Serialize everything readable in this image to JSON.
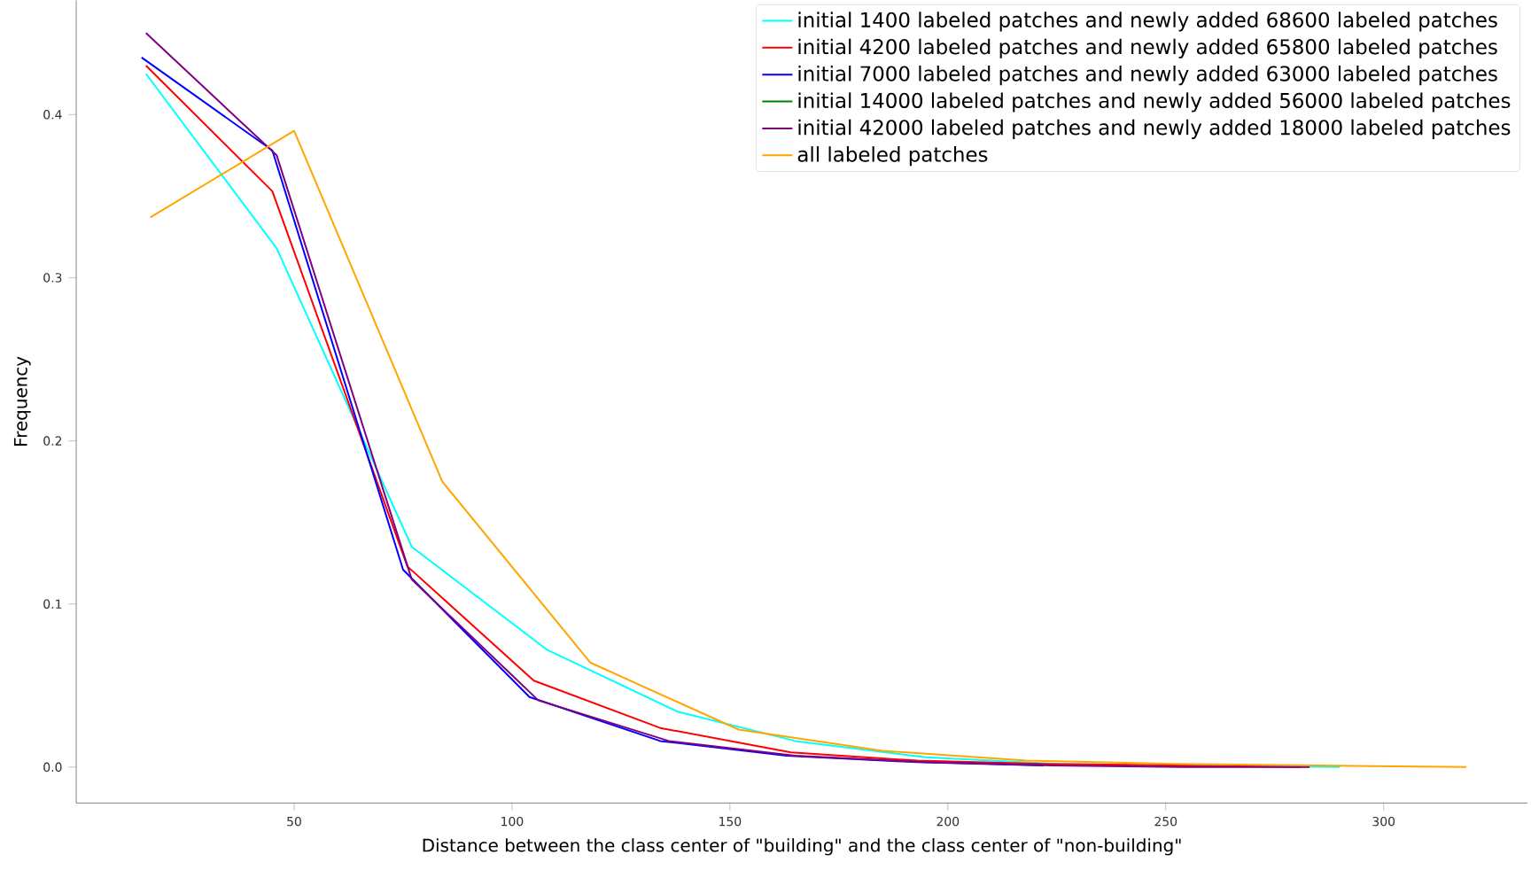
{
  "chart_data": {
    "type": "line",
    "xlabel": "Distance between the class center of \"building\" and the class center of \"non-building\"",
    "ylabel": "Frequency",
    "xlim": [
      0,
      333
    ],
    "ylim": [
      -0.022,
      0.47
    ],
    "xticks": [
      50,
      100,
      150,
      200,
      250,
      300
    ],
    "yticks": [
      {
        "value": 0,
        "label": "0.0"
      },
      {
        "value": 0.1,
        "label": "0.1"
      },
      {
        "value": 0.2,
        "label": "0.2"
      },
      {
        "value": 0.3,
        "label": "0.3"
      },
      {
        "value": 0.4,
        "label": "0.4"
      }
    ],
    "grid": false,
    "legend": "top right",
    "marker": "none",
    "line_style": "solid",
    "series": [
      {
        "name": "initial 1400 labeled patches and newly added 68600 labeled patches",
        "color": "#00ffff",
        "x": [
          16,
          46,
          77,
          108,
          138,
          165,
          195,
          225,
          255,
          290
        ],
        "values": [
          0.425,
          0.318,
          0.135,
          0.072,
          0.034,
          0.016,
          0.006,
          0.002,
          0.001,
          0.0
        ]
      },
      {
        "name": "initial 4200 labeled patches and newly added 65800 labeled patches",
        "color": "#ff0000",
        "x": [
          16,
          45,
          76,
          105,
          134,
          164,
          193,
          222,
          252,
          281
        ],
        "values": [
          0.43,
          0.353,
          0.123,
          0.053,
          0.024,
          0.009,
          0.004,
          0.002,
          0.001,
          0.0
        ]
      },
      {
        "name": "initial 7000 labeled patches and newly added 63000 labeled patches",
        "color": "#0000ff",
        "x": [
          15,
          45,
          75,
          104,
          134,
          163,
          193,
          222
        ],
        "values": [
          0.435,
          0.378,
          0.121,
          0.043,
          0.016,
          0.007,
          0.003,
          0.001
        ]
      },
      {
        "name": "initial 14000 labeled patches and newly added 56000 labeled patches",
        "color": "#008000"
      },
      {
        "name": "initial 42000 labeled patches and newly added 18000 labeled patches",
        "color": "#800080",
        "x": [
          16,
          46,
          77,
          106,
          136,
          165,
          195,
          224,
          254,
          283
        ],
        "values": [
          0.45,
          0.375,
          0.115,
          0.041,
          0.016,
          0.007,
          0.003,
          0.001,
          0.0,
          0.0
        ]
      },
      {
        "name": "all labeled patches",
        "color": "#ffa500",
        "x": [
          17,
          50,
          84,
          118,
          152,
          185,
          218,
          252,
          285,
          319
        ],
        "values": [
          0.337,
          0.39,
          0.175,
          0.064,
          0.023,
          0.01,
          0.004,
          0.002,
          0.001,
          0.0
        ]
      }
    ]
  }
}
